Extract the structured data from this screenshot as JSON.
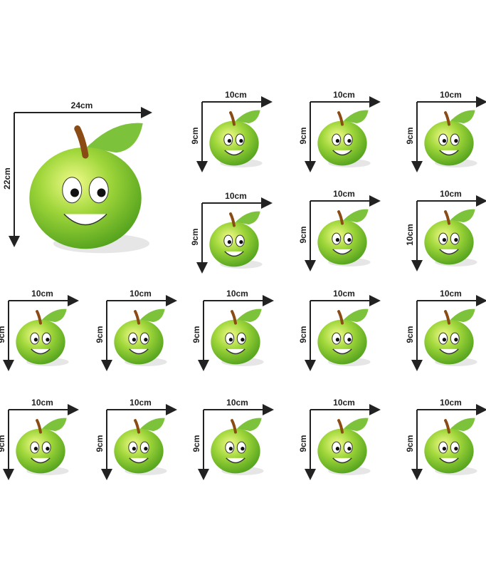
{
  "stickers": [
    {
      "width": "24cm",
      "height": "22cm"
    },
    {
      "width": "10cm",
      "height": "9cm"
    },
    {
      "width": "10cm",
      "height": "9cm"
    },
    {
      "width": "10cm",
      "height": "9cm"
    },
    {
      "width": "10cm",
      "height": "9cm"
    },
    {
      "width": "10cm",
      "height": "9cm"
    },
    {
      "width": "10cm",
      "height": "10cm"
    },
    {
      "width": "10cm",
      "height": "9cm"
    },
    {
      "width": "10cm",
      "height": "9cm"
    },
    {
      "width": "10cm",
      "height": "9cm"
    },
    {
      "width": "10cm",
      "height": "9cm"
    },
    {
      "width": "10cm",
      "height": "9cm"
    },
    {
      "width": "10cm",
      "height": "9cm"
    },
    {
      "width": "10cm",
      "height": "9cm"
    },
    {
      "width": "10cm",
      "height": "9cm"
    },
    {
      "width": "10cm",
      "height": "9cm"
    },
    {
      "width": "10cm",
      "height": "9cm"
    }
  ]
}
